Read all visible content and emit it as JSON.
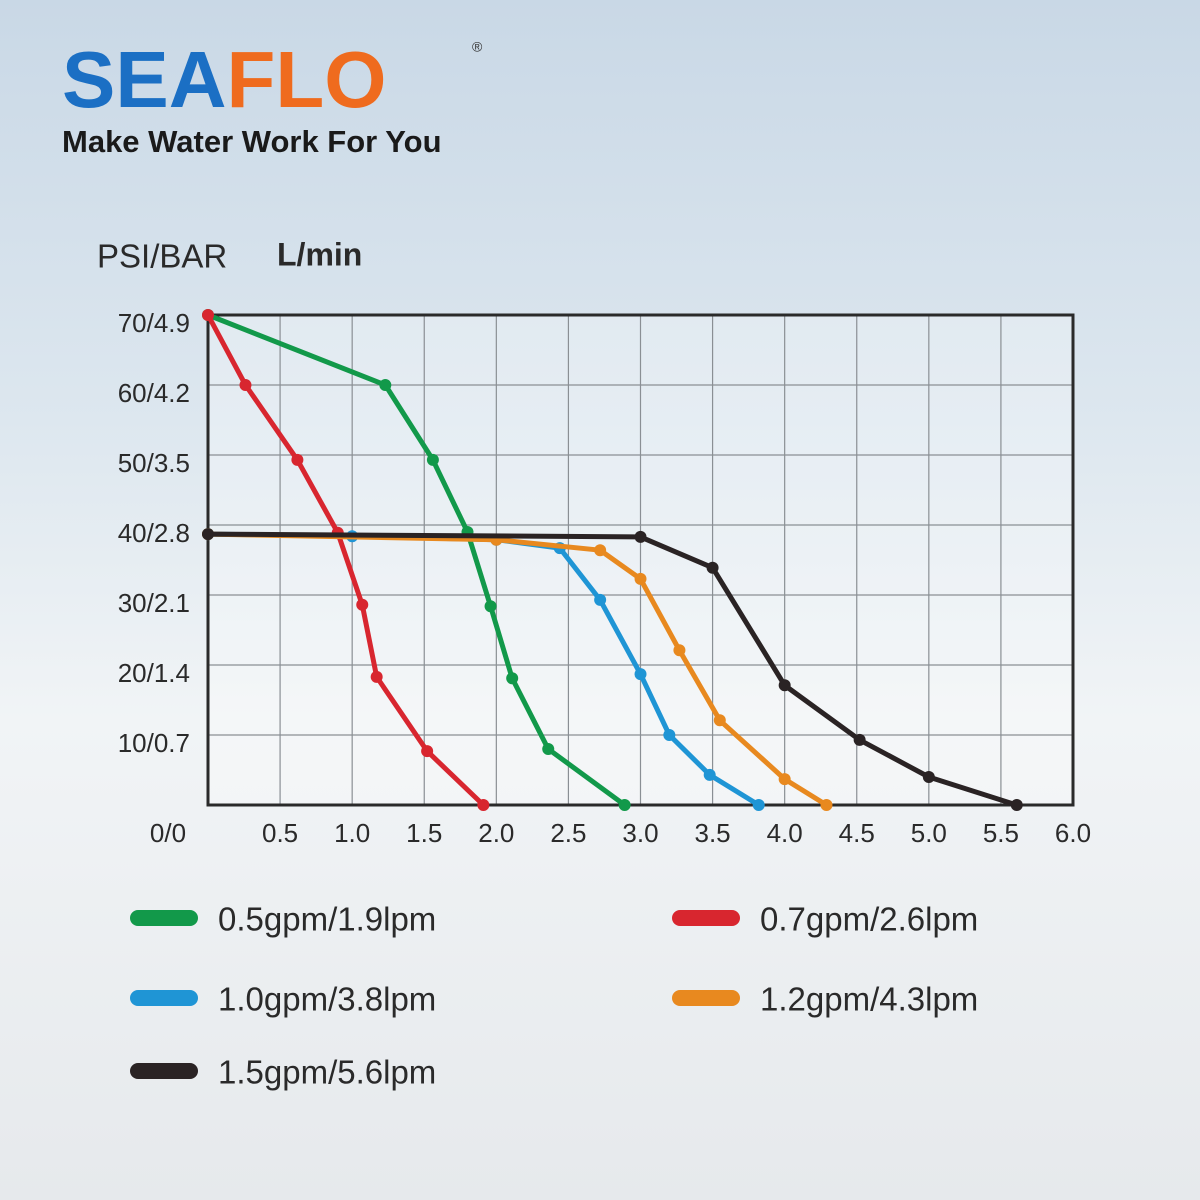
{
  "header": {
    "logo": [
      "SEA",
      "FLO"
    ],
    "registered": "®",
    "tagline": "Make Water Work For You"
  },
  "chart_data": {
    "type": "line",
    "y_label": "PSI/BAR",
    "x_label": "L/min",
    "xlim": [
      0,
      6
    ],
    "ylim": [
      0,
      70
    ],
    "xticks": [
      {
        "value": 0,
        "label": "0/0"
      },
      0.5,
      {
        "value": 1,
        "label": "1.0"
      },
      1.5,
      {
        "value": 2,
        "label": "2.0"
      },
      2.5,
      {
        "value": 3,
        "label": "3.0"
      },
      3.5,
      {
        "value": 4,
        "label": "4.0"
      },
      4.5,
      {
        "value": 5,
        "label": "5.0"
      },
      5.5,
      {
        "value": 6,
        "label": "6.0"
      }
    ],
    "yticks": [
      {
        "value": 10,
        "label": "10/0.7"
      },
      {
        "value": 20,
        "label": "20/1.4"
      },
      {
        "value": 30,
        "label": "30/2.1"
      },
      {
        "value": 40,
        "label": "40/2.8"
      },
      {
        "value": 50,
        "label": "50/3.5"
      },
      {
        "value": 60,
        "label": "60/4.2"
      },
      {
        "value": 70,
        "label": "70/4.9"
      }
    ],
    "grid": true,
    "series": [
      {
        "name": "0.5gpm/1.9lpm",
        "color": "#12994a",
        "x": [
          0,
          1.23,
          1.56,
          1.8,
          1.96,
          2.11,
          2.36,
          2.89
        ],
        "values": [
          70,
          60,
          49.3,
          39,
          28.4,
          18.1,
          8,
          0
        ]
      },
      {
        "name": "0.7gpm/2.6lpm",
        "color": "#d8262f",
        "x": [
          0,
          0.26,
          0.62,
          0.9,
          1.07,
          1.17,
          1.52,
          1.91
        ],
        "values": [
          70,
          60,
          49.3,
          38.9,
          28.6,
          18.3,
          7.7,
          0
        ]
      },
      {
        "name": "1.0gpm/3.8lpm",
        "color": "#1f95d5",
        "x": [
          0,
          1.0,
          2.0,
          2.44,
          2.72,
          3.0,
          3.2,
          3.48,
          3.82
        ],
        "values": [
          38.7,
          38.4,
          37.9,
          36.7,
          29.3,
          18.7,
          10,
          4.3,
          0
        ]
      },
      {
        "name": "1.2gpm/4.3lpm",
        "color": "#e8891f",
        "x": [
          0,
          2.0,
          2.72,
          3.0,
          3.27,
          3.55,
          4.0,
          4.29
        ],
        "values": [
          38.7,
          37.9,
          36.4,
          32.3,
          22.1,
          12.1,
          3.7,
          0
        ]
      },
      {
        "name": "1.5gpm/5.6lpm",
        "color": "#2a2324",
        "x": [
          0,
          3.0,
          3.5,
          4.0,
          4.52,
          5.0,
          5.61
        ],
        "values": [
          38.7,
          38.3,
          33.9,
          17.1,
          9.3,
          4,
          0
        ]
      }
    ]
  }
}
